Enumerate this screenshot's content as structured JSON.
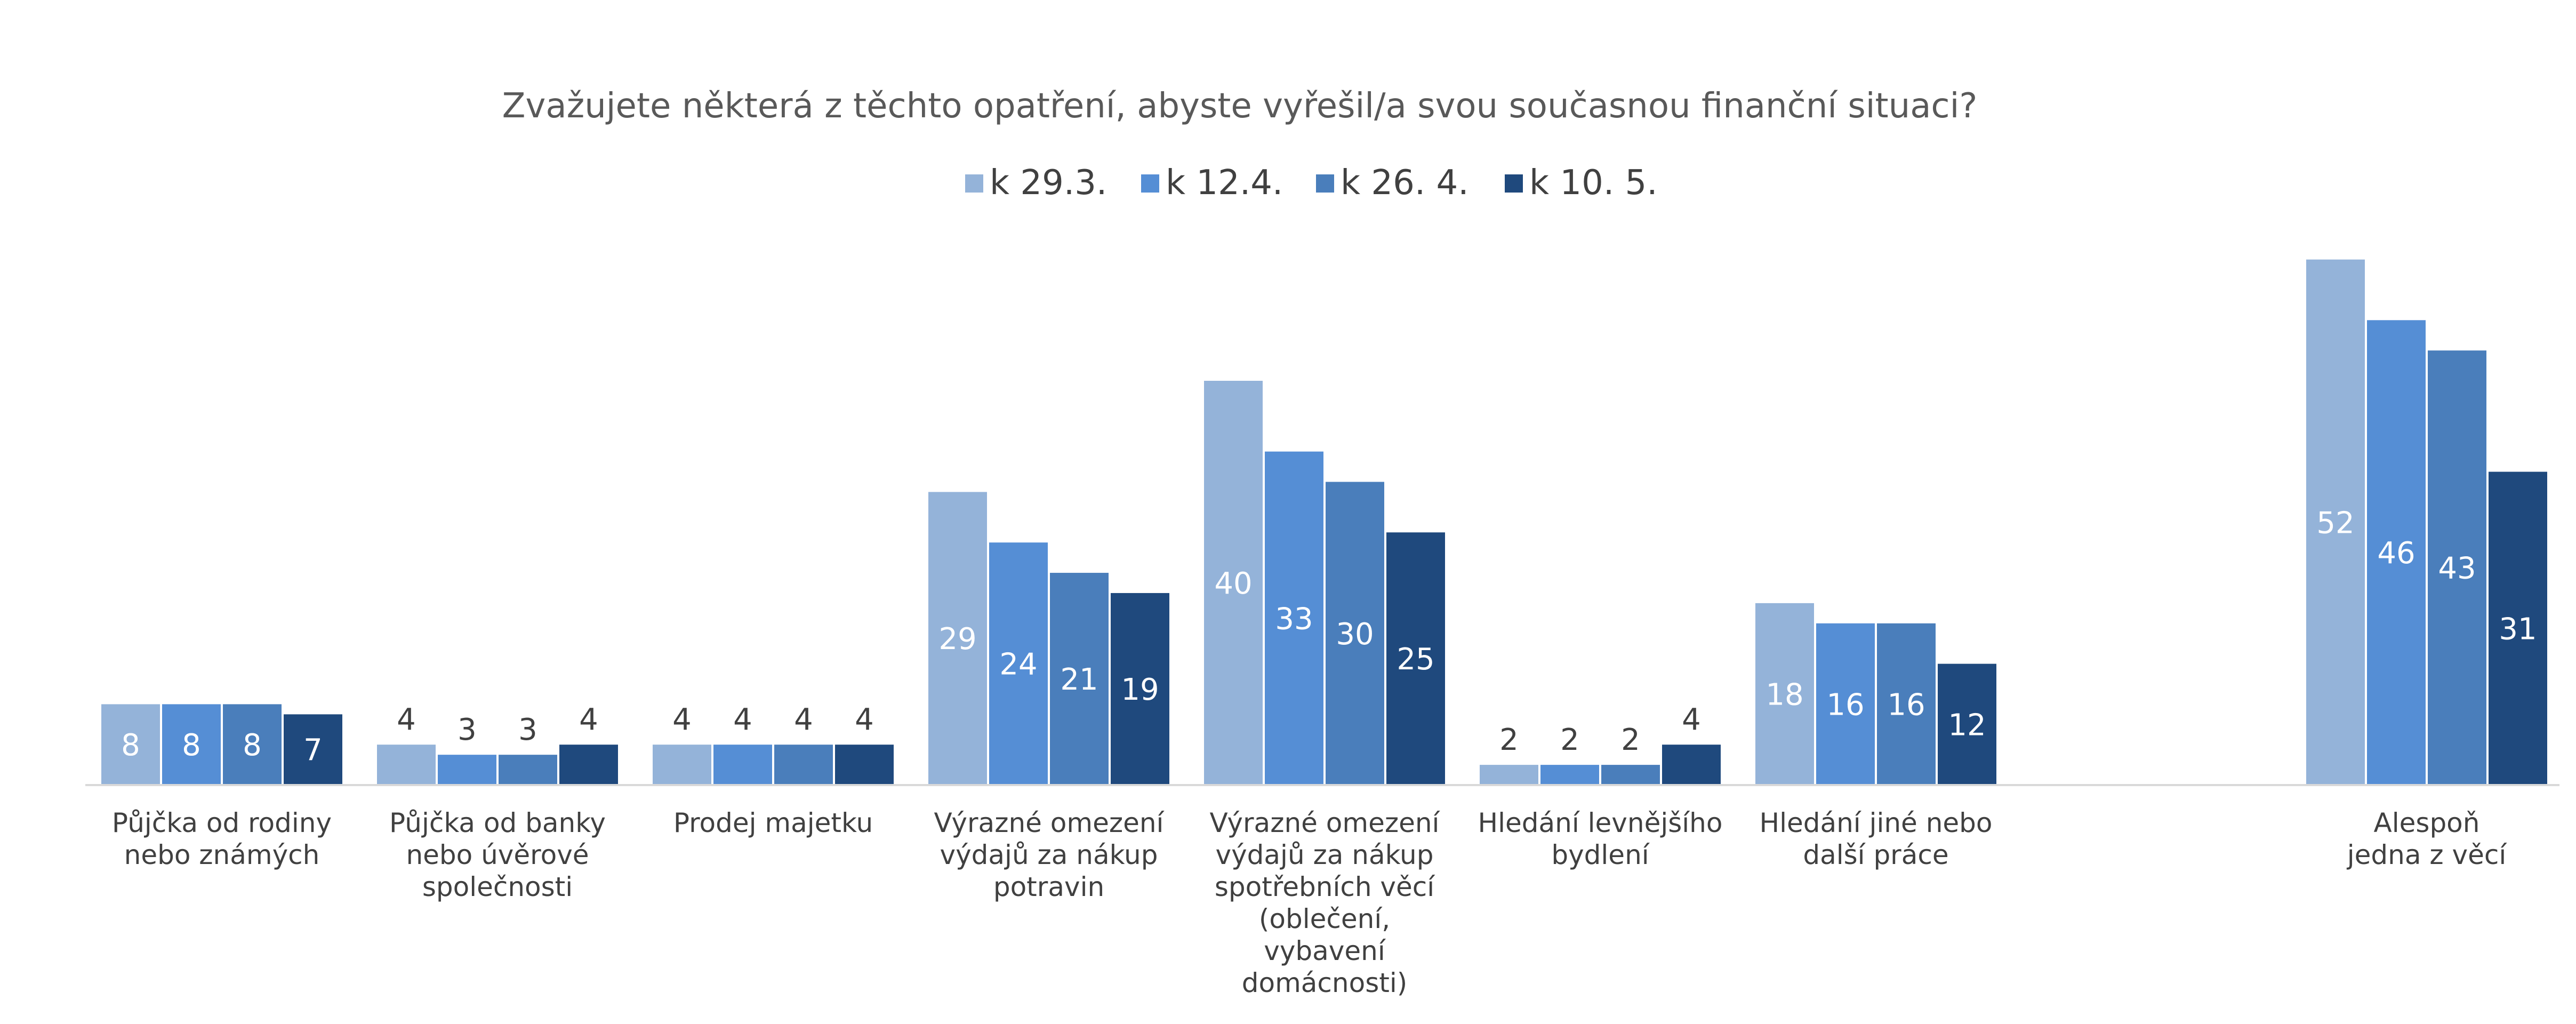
{
  "chart_data": {
    "type": "bar",
    "title": "Zvažujete některá z těchto opatření, abyste vyřešil/a svou současnou finanční situaci?",
    "xlabel": "",
    "ylabel": "",
    "ylim": [
      0,
      56
    ],
    "grid": false,
    "legend_position": "top-center",
    "categories": [
      [
        "Půjčka od rodiny",
        "nebo známých"
      ],
      [
        "Půjčka od banky",
        "nebo úvěrové",
        "společnosti"
      ],
      [
        "Prodej majetku"
      ],
      [
        "Výrazné omezení",
        "výdajů za nákup",
        "potravin"
      ],
      [
        "Výrazné omezení",
        "výdajů za nákup",
        "spotřebních věcí",
        "(oblečení,",
        "vybavení",
        "domácnosti)"
      ],
      [
        "Hledání levnějšího",
        "bydlení"
      ],
      [
        "Hledání jiné nebo",
        "další práce"
      ],
      [
        "Alespoň",
        "jedna z věcí"
      ]
    ],
    "series": [
      {
        "name": "k 29.3.",
        "color": "#94B3D9",
        "values": [
          8,
          4,
          4,
          29,
          40,
          2,
          18,
          52
        ]
      },
      {
        "name": "k 12.4.",
        "color": "#558ED5",
        "values": [
          8,
          3,
          4,
          24,
          33,
          2,
          16,
          46
        ]
      },
      {
        "name": "k 26. 4.",
        "color": "#4A7EBB",
        "values": [
          8,
          3,
          4,
          21,
          30,
          2,
          16,
          43
        ]
      },
      {
        "name": "k 10. 5.",
        "color": "#1F497D",
        "values": [
          7,
          4,
          4,
          19,
          25,
          4,
          12,
          31
        ]
      }
    ]
  }
}
